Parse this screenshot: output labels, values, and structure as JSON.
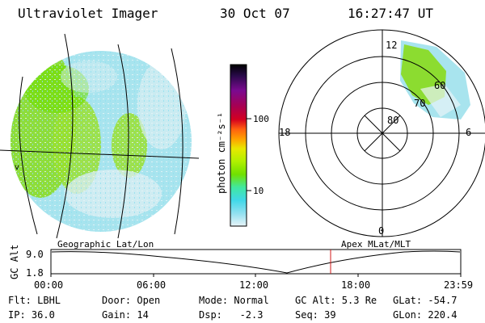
{
  "header": {
    "title": "Ultraviolet Imager",
    "date": "30 Oct 07",
    "time": "16:27:47 UT"
  },
  "colorbar": {
    "unit_label": "photon cm⁻²s⁻¹",
    "ticks": [
      "100",
      "10"
    ],
    "colors": [
      "#000000",
      "#2a0a4a",
      "#7a0a90",
      "#a80050",
      "#d40020",
      "#ff6010",
      "#ffa000",
      "#e8e800",
      "#b0f000",
      "#70e000",
      "#40e8a0",
      "#40d8e8",
      "#90e0f0",
      "#e8f4f8"
    ]
  },
  "polar_plot": {
    "mlt_labels": {
      "top": "12",
      "left": "18",
      "right": "6",
      "bottom": "0"
    },
    "lat_labels": [
      "60",
      "70",
      "80"
    ]
  },
  "map_labels": {
    "left": "Geographic Lat/Lon",
    "right": "Apex MLat/MLT"
  },
  "orbit": {
    "axis_label": "GC Alt",
    "y_ticks": [
      "9.0",
      "1.8"
    ],
    "x_ticks": [
      "00:00",
      "06:00",
      "12:00",
      "18:00",
      "23:59"
    ],
    "cursor_color": "#d01818"
  },
  "status": {
    "flt": "Flt: LBHL",
    "ip": "IP: 36.0",
    "door": "Door: Open",
    "gain": "Gain: 14",
    "mode": "Mode: Normal",
    "dsp": "Dsp:   -2.3",
    "gc_alt": "GC Alt: 5.3 Re",
    "seq": "Seq: 39",
    "glat": "GLat: -54.7",
    "glon": "GLon: 220.4"
  }
}
